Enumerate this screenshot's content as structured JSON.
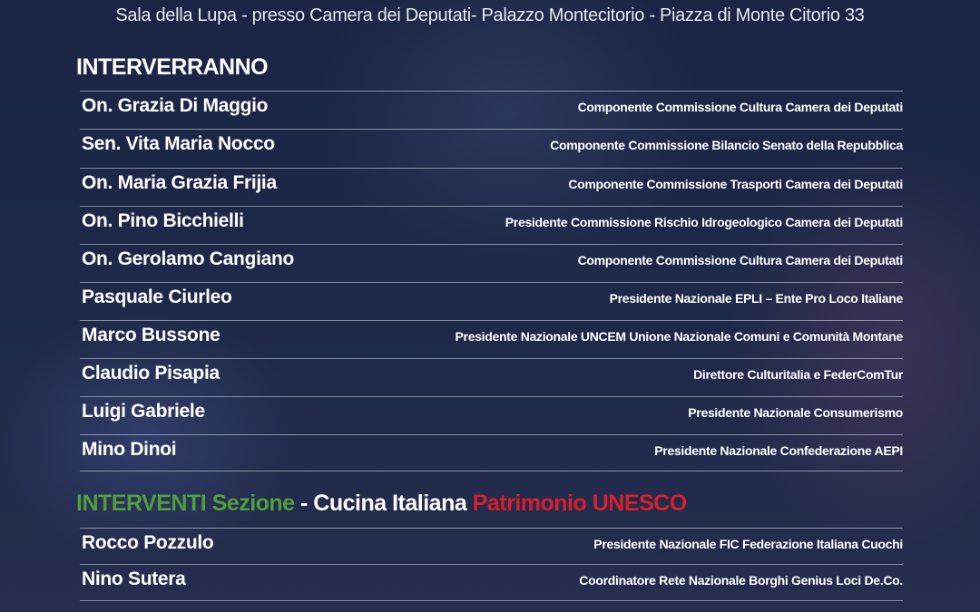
{
  "venue": "Sala della Lupa - presso Camera dei Deputati- Palazzo Montecitorio - Piazza di Monte Citorio 33",
  "section1": {
    "title": "INTERVERRANNO",
    "speakers": [
      {
        "name": "On. Grazia Di Maggio",
        "role": "Componente Commissione Cultura Camera dei Deputati"
      },
      {
        "name": "Sen. Vita Maria Nocco",
        "role": "Componente Commissione Bilancio Senato della Repubblica"
      },
      {
        "name": "On. Maria Grazia Frijia",
        "role": "Componente Commissione Trasporti Camera dei Deputati"
      },
      {
        "name": "On. Pino Bicchielli",
        "role": "Presidente Commissione Rischio Idrogeologico Camera dei Deputati"
      },
      {
        "name": "On. Gerolamo Cangiano",
        "role": "Componente Commissione Cultura Camera dei Deputati"
      },
      {
        "name": "Pasquale Ciurleo",
        "role": "Presidente Nazionale EPLI – Ente Pro Loco Italiane"
      },
      {
        "name": "Marco Bussone",
        "role": "Presidente Nazionale UNCEM Unione Nazionale Comuni e Comunità Montane"
      },
      {
        "name": "Claudio Pisapia",
        "role": "Direttore Culturitalia e FederComTur"
      },
      {
        "name": "Luigi Gabriele",
        "role": "Presidente Nazionale Consumerismo"
      },
      {
        "name": "Mino Dinoi",
        "role": "Presidente Nazionale Confederazione AEPI"
      }
    ]
  },
  "section2": {
    "title_parts": [
      {
        "text": "INTERVENTI Sezione",
        "color": "#4f9e3c"
      },
      {
        "text": " - Cucina Italiana ",
        "color": "#ffffff"
      },
      {
        "text": "Patrimonio UNESCO",
        "color": "#d61f2b"
      }
    ],
    "speakers": [
      {
        "name": "Rocco Pozzulo",
        "role": "Presidente Nazionale FIC Federazione Italiana Cuochi"
      },
      {
        "name": "Nino Sutera",
        "role": "Coordinatore Rete Nazionale Borghi Genius Loci De.Co."
      }
    ]
  },
  "colors": {
    "background": "#1e2848",
    "green": "#4f9e3c",
    "red": "#d61f2b"
  }
}
